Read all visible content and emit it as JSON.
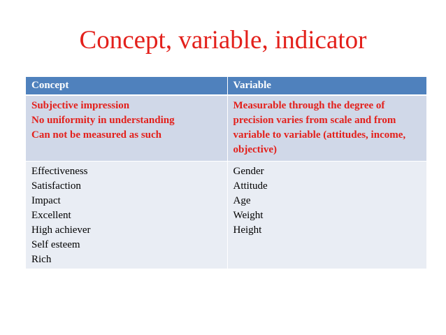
{
  "title": "Concept, variable, indicator",
  "table": {
    "header": [
      "Concept",
      "Variable"
    ],
    "rows": [
      [
        [
          "Subjective impression",
          "No uniformity in understanding",
          "Can not be measured as such"
        ],
        [
          "Measurable through the degree of precision varies from scale and from variable to variable (attitudes, income, objective)"
        ]
      ],
      [
        [
          "Effectiveness",
          "Satisfaction",
          "Impact",
          "Excellent",
          "High achiever",
          "Self esteem",
          "Rich"
        ],
        [
          "Gender",
          "Attitude",
          "Age",
          "Weight",
          "Height"
        ]
      ]
    ]
  }
}
